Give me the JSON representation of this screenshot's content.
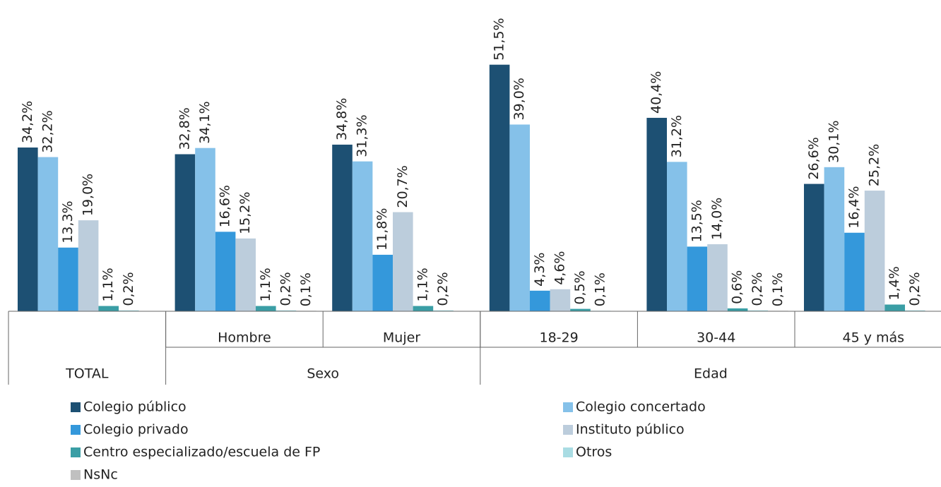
{
  "chart_data": {
    "type": "bar",
    "categories": [
      null,
      "Hombre",
      "Mujer",
      "18-29",
      "30-44",
      "45 y más"
    ],
    "groups": [
      {
        "name": "TOTAL",
        "size": 1
      },
      {
        "name": "Sexo",
        "size": 2
      },
      {
        "name": "Edad",
        "size": 3
      }
    ],
    "ylim": [
      0,
      60
    ],
    "legend": "bottom",
    "series": [
      {
        "name": "Colegio público",
        "color": "#1d5073",
        "values": [
          34.2,
          32.8,
          34.8,
          51.5,
          40.4,
          26.6
        ],
        "value_labels": [
          "34,2%",
          "32,8%",
          "34,8%",
          "51,5%",
          "40,4%",
          "26,6%"
        ]
      },
      {
        "name": "Colegio concertado",
        "color": "#85c1e9",
        "values": [
          32.2,
          34.1,
          31.3,
          39.0,
          31.2,
          30.1
        ],
        "value_labels": [
          "32,2%",
          "34,1%",
          "31,3%",
          "39,0%",
          "31,2%",
          "30,1%"
        ]
      },
      {
        "name": "Colegio privado",
        "color": "#3498db",
        "values": [
          13.3,
          16.6,
          11.8,
          4.3,
          13.5,
          16.4
        ],
        "value_labels": [
          "13,3%",
          "16,6%",
          "11,8%",
          "4,3%",
          "13,5%",
          "16,4%"
        ]
      },
      {
        "name": "Instituto público",
        "color": "#bccddc",
        "values": [
          19.0,
          15.2,
          20.7,
          4.6,
          14.0,
          25.2
        ],
        "value_labels": [
          "19,0%",
          "15,2%",
          "20,7%",
          "4,6%",
          "14,0%",
          "25,2%"
        ]
      },
      {
        "name": "Centro especializado/escuela de FP",
        "color": "#3a9ea5",
        "values": [
          1.1,
          1.1,
          1.1,
          0.5,
          0.6,
          1.4
        ],
        "value_labels": [
          "1,1%",
          "1,1%",
          "1,1%",
          "0,5%",
          "0,6%",
          "1,4%"
        ]
      },
      {
        "name": "Otros",
        "color": "#a9dce3",
        "values": [
          0.2,
          0.2,
          0.2,
          0.1,
          0.2,
          0.2
        ],
        "value_labels": [
          "0,2%",
          "0,2%",
          "0,2%",
          "0,1%",
          "0,2%",
          "0,2%"
        ]
      },
      {
        "name": "NsNc",
        "color": "#c0c0c0",
        "values": [
          null,
          0.1,
          null,
          null,
          0.1,
          null
        ],
        "value_labels": [
          null,
          "0,1%",
          null,
          null,
          "0,1%",
          null
        ]
      }
    ]
  }
}
